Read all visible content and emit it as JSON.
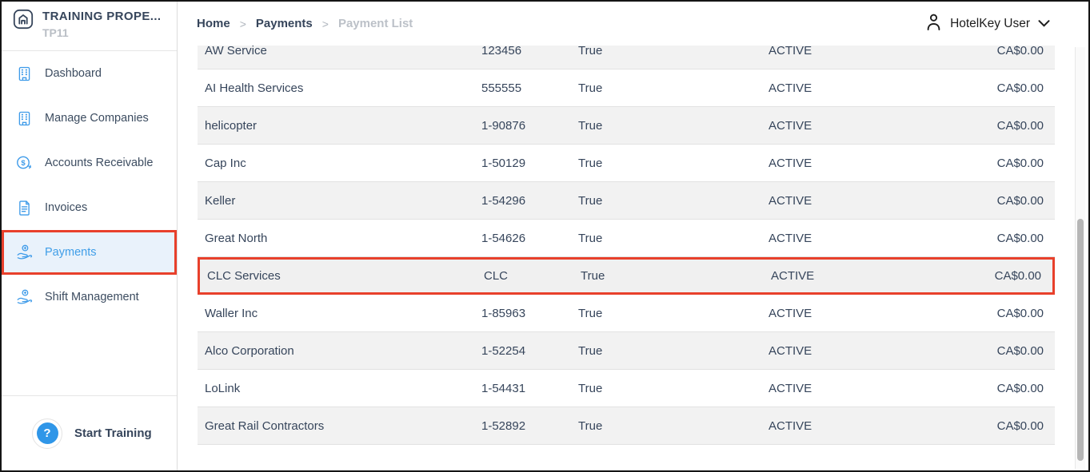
{
  "brand": {
    "name": "TRAINING PROPE...",
    "code": "TP11",
    "icon": "home-icon"
  },
  "breadcrumb": {
    "separator": ">",
    "items": [
      {
        "label": "Home",
        "current": false
      },
      {
        "label": "Payments",
        "current": false
      },
      {
        "label": "Payment List",
        "current": true
      }
    ]
  },
  "user_menu": {
    "name": "HotelKey User",
    "icons": [
      "person-icon",
      "chevron-down-icon"
    ]
  },
  "sidebar": {
    "items": [
      {
        "label": "Dashboard",
        "icon": "building-icon",
        "active": false
      },
      {
        "label": "Manage Companies",
        "icon": "building-icon",
        "active": false
      },
      {
        "label": "Accounts Receivable",
        "icon": "dollar-circle-icon",
        "active": false
      },
      {
        "label": "Invoices",
        "icon": "document-icon",
        "active": false
      },
      {
        "label": "Payments",
        "icon": "hand-coin-icon",
        "active": true
      },
      {
        "label": "Shift Management",
        "icon": "hand-coin-icon",
        "active": false
      }
    ],
    "footer": {
      "label": "Start Training",
      "icon": "question-icon",
      "icon_glyph": "?"
    }
  },
  "table": {
    "rows": [
      {
        "name": "AW Service",
        "number": "123456",
        "flag": "True",
        "status": "ACTIVE",
        "amount": "CA$0.00",
        "highlighted": false
      },
      {
        "name": "AI Health Services",
        "number": "555555",
        "flag": "True",
        "status": "ACTIVE",
        "amount": "CA$0.00",
        "highlighted": false
      },
      {
        "name": "helicopter",
        "number": "1-90876",
        "flag": "True",
        "status": "ACTIVE",
        "amount": "CA$0.00",
        "highlighted": false
      },
      {
        "name": "Cap Inc",
        "number": "1-50129",
        "flag": "True",
        "status": "ACTIVE",
        "amount": "CA$0.00",
        "highlighted": false
      },
      {
        "name": "Keller",
        "number": "1-54296",
        "flag": "True",
        "status": "ACTIVE",
        "amount": "CA$0.00",
        "highlighted": false
      },
      {
        "name": "Great North",
        "number": "1-54626",
        "flag": "True",
        "status": "ACTIVE",
        "amount": "CA$0.00",
        "highlighted": false
      },
      {
        "name": "CLC Services",
        "number": "CLC",
        "flag": "True",
        "status": "ACTIVE",
        "amount": "CA$0.00",
        "highlighted": true
      },
      {
        "name": "Waller Inc",
        "number": "1-85963",
        "flag": "True",
        "status": "ACTIVE",
        "amount": "CA$0.00",
        "highlighted": false
      },
      {
        "name": "Alco Corporation",
        "number": "1-52254",
        "flag": "True",
        "status": "ACTIVE",
        "amount": "CA$0.00",
        "highlighted": false
      },
      {
        "name": "LoLink",
        "number": "1-54431",
        "flag": "True",
        "status": "ACTIVE",
        "amount": "CA$0.00",
        "highlighted": false
      },
      {
        "name": "Great Rail Contractors",
        "number": "1-52892",
        "flag": "True",
        "status": "ACTIVE",
        "amount": "CA$0.00",
        "highlighted": false
      }
    ]
  },
  "colors": {
    "accent_blue": "#3F9EE8",
    "active_bg": "#E9F2FB",
    "highlight_red": "#E8402B",
    "text_navy": "#36455B",
    "muted_gray": "#B9BEC5",
    "row_alt": "#F2F2F2"
  }
}
